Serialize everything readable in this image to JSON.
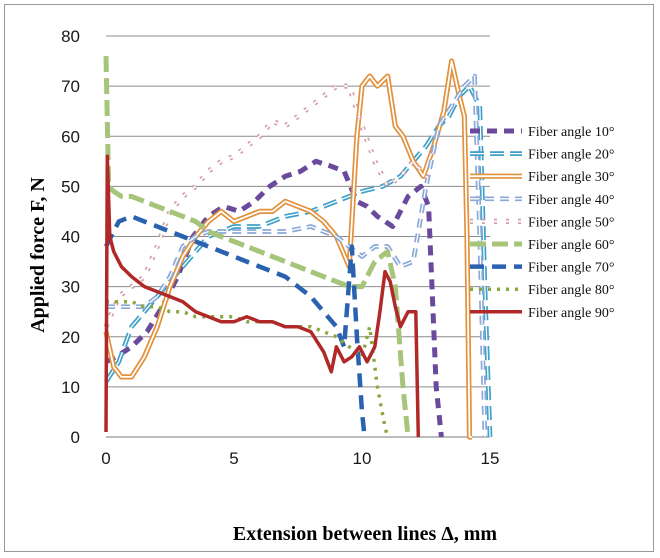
{
  "chart_data": {
    "type": "line",
    "title": "",
    "xlabel": "Extension between lines Δ, mm",
    "ylabel": "Applied force F, N",
    "xlim": [
      0,
      15
    ],
    "ylim": [
      0,
      80
    ],
    "xticks": [
      "0",
      "5",
      "10",
      "15"
    ],
    "yticks": [
      "0",
      "10",
      "20",
      "30",
      "40",
      "50",
      "60",
      "70",
      "80"
    ],
    "grid": "horizontal",
    "legend": "right",
    "series": [
      {
        "name": "Fiber angle 10°",
        "color": "#6a4a9c",
        "dash": "10 7",
        "width": 5,
        "x": [
          0,
          0.4,
          1,
          1.6,
          2.2,
          2.8,
          3.4,
          4,
          4.6,
          5.2,
          5.8,
          6.4,
          7,
          7.6,
          8.2,
          8.8,
          9.3,
          9.8,
          10.2,
          10.6,
          11.2,
          11.8,
          12.3,
          12.6,
          12.9,
          13.0,
          13.1
        ],
        "y": [
          15,
          16,
          18,
          21,
          26,
          32,
          40,
          44,
          46,
          45,
          47,
          50,
          52,
          53,
          55,
          54,
          53,
          47,
          46,
          44,
          42,
          48,
          50,
          46,
          10,
          5,
          0
        ]
      },
      {
        "name": "Fiber angle 20°",
        "color": "#3fa0c8",
        "dash": "14 6",
        "width": 2.5,
        "hollow": true,
        "x": [
          0,
          0.5,
          1,
          2,
          3,
          4,
          5,
          6,
          7,
          8,
          9,
          10,
          10.8,
          11.5,
          12,
          12.5,
          13,
          13.4,
          13.8,
          14.2,
          14.6,
          14.8,
          15.0
        ],
        "y": [
          11,
          15,
          22,
          28,
          34,
          40,
          42,
          42,
          44,
          45,
          47,
          49,
          50,
          52,
          55,
          58,
          62,
          64,
          68,
          70,
          66,
          30,
          0
        ]
      },
      {
        "name": "Fiber angle 30°",
        "color": "#e2903a",
        "dash": "",
        "width": 3,
        "hollow": true,
        "x": [
          0,
          0.3,
          0.6,
          1,
          1.5,
          2,
          2.5,
          3,
          3.5,
          4,
          4.5,
          5,
          5.5,
          6,
          6.5,
          7,
          7.5,
          8,
          8.5,
          9,
          9.5,
          9.8,
          10,
          10.3,
          10.6,
          11,
          11.3,
          11.6,
          12,
          12.4,
          12.8,
          13.2,
          13.5,
          13.8,
          14,
          14.1,
          14.2,
          14.3
        ],
        "y": [
          21,
          14,
          12,
          12,
          16,
          22,
          30,
          36,
          40,
          43,
          45,
          43,
          44,
          45,
          45,
          47,
          46,
          45,
          43,
          40,
          34,
          60,
          70,
          72,
          70,
          72,
          62,
          60,
          55,
          52,
          58,
          65,
          75,
          68,
          64,
          40,
          0,
          0
        ]
      },
      {
        "name": "Fiber angle 40°",
        "color": "#8aa8d8",
        "dash": "9 6",
        "width": 2.5,
        "hollow": true,
        "x": [
          0,
          0.5,
          1,
          1.5,
          2,
          2.5,
          3,
          3.5,
          4,
          5,
          6,
          7,
          8,
          9,
          9.5,
          10,
          10.5,
          11,
          11.5,
          12,
          12.5,
          13,
          13.5,
          14,
          14.4,
          14.6,
          14.8
        ],
        "y": [
          26,
          26,
          26,
          26,
          28,
          32,
          38,
          40,
          41,
          41,
          41,
          41,
          42,
          40,
          38,
          36,
          38,
          38,
          34,
          35,
          50,
          62,
          66,
          70,
          72,
          40,
          0
        ]
      },
      {
        "name": "Fiber angle 50°",
        "color": "#d4a0a8",
        "dash": "3 9",
        "width": 3,
        "hollow": true,
        "x": [
          0,
          0.5,
          1,
          1.5,
          2,
          2.5,
          3,
          3.5,
          4,
          4.5,
          5,
          5.5,
          6,
          6.5,
          7,
          7.5,
          8,
          8.5,
          9,
          9.5,
          10,
          10.5,
          11,
          11.5,
          12,
          12.5,
          12.8
        ],
        "y": [
          22,
          28,
          30,
          32,
          38,
          45,
          48,
          50,
          53,
          55,
          56,
          58,
          60,
          63,
          62,
          64,
          66,
          68,
          70,
          70,
          62,
          55,
          50,
          52,
          55,
          52,
          51
        ]
      },
      {
        "name": "Fiber angle 60°",
        "color": "#a6c47a",
        "dash": "16 6",
        "width": 5,
        "x": [
          0,
          0.1,
          0.3,
          0.6,
          1,
          1.5,
          2,
          2.5,
          3,
          3.5,
          4,
          4.5,
          5,
          5.5,
          6,
          6.5,
          7,
          7.5,
          8,
          8.5,
          9,
          9.5,
          10,
          10.5,
          11,
          11.3,
          11.6,
          11.8
        ],
        "y": [
          76,
          50,
          49,
          48,
          48,
          47,
          46,
          45,
          44,
          43,
          41,
          40,
          39,
          38,
          37,
          36,
          35,
          34,
          33,
          32,
          31,
          30,
          30,
          35,
          37,
          30,
          10,
          0
        ]
      },
      {
        "name": "Fiber angle 70°",
        "color": "#2a62b0",
        "dash": "14 8",
        "width": 4.5,
        "x": [
          0,
          0.2,
          0.5,
          1,
          1.5,
          2,
          2.5,
          3,
          3.5,
          4,
          4.5,
          5,
          5.5,
          6,
          6.5,
          7,
          7.5,
          8,
          8.5,
          9,
          9.3,
          9.6,
          9.8,
          10.0,
          10.1
        ],
        "y": [
          38,
          40,
          43,
          44,
          43,
          42,
          41,
          40,
          39,
          38,
          37,
          36,
          35,
          34,
          33,
          32,
          30,
          28,
          25,
          22,
          18,
          38,
          20,
          5,
          0
        ]
      },
      {
        "name": "Fiber angle 80°",
        "color": "#8aa840",
        "dash": "3 6",
        "width": 3.5,
        "x": [
          0,
          0.5,
          1,
          1.5,
          2,
          2.5,
          3,
          3.5,
          4,
          4.5,
          5,
          5.5,
          6,
          6.5,
          7,
          7.5,
          8,
          8.5,
          9,
          9.5,
          10,
          10.3,
          10.6,
          10.9,
          11.0
        ],
        "y": [
          27,
          27,
          27,
          26,
          26,
          25,
          25,
          24,
          24,
          24,
          24,
          23,
          23,
          23,
          22,
          22,
          22,
          21,
          20,
          18,
          16,
          22,
          10,
          2,
          0
        ]
      },
      {
        "name": "Fiber angle 90°",
        "color": "#b02828",
        "dash": "",
        "width": 3.5,
        "x": [
          0,
          0.05,
          0.15,
          0.3,
          0.6,
          1,
          1.5,
          2,
          2.5,
          3,
          3.5,
          4,
          4.5,
          5,
          5.5,
          6,
          6.5,
          7,
          7.5,
          8,
          8.5,
          8.8,
          9,
          9.3,
          9.6,
          9.9,
          10.2,
          10.5,
          10.7,
          10.9,
          11.1,
          11.3,
          11.5,
          11.8,
          12.1,
          12.2
        ],
        "y": [
          1,
          56,
          40,
          37,
          34,
          32,
          30,
          29,
          28,
          27,
          25,
          24,
          23,
          23,
          24,
          23,
          23,
          22,
          22,
          21,
          17,
          13,
          18,
          15,
          16,
          18,
          15,
          18,
          25,
          33,
          31,
          26,
          22,
          25,
          25,
          0
        ]
      }
    ]
  }
}
